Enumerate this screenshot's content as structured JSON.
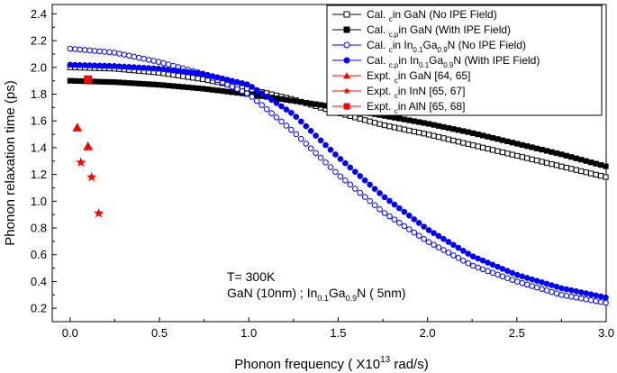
{
  "chart_data": {
    "type": "scatter",
    "title": "",
    "xlabel": "Phonon frequency ( X10",
    "xlabel_sup": "13",
    "xlabel_tail": " rad/s)",
    "ylabel": "Phonon relaxation time (ps)",
    "xlim": [
      -0.1,
      3.0
    ],
    "ylim": [
      0.1,
      2.47
    ],
    "x_ticks": [
      "0.0",
      "0.5",
      "1.0",
      "1.5",
      "2.0",
      "2.5",
      "3.0"
    ],
    "y_ticks": [
      "0.2",
      "0.4",
      "0.6",
      "0.8",
      "1.0",
      "1.2",
      "1.4",
      "1.6",
      "1.8",
      "2.0",
      "2.2",
      "2.4"
    ],
    "annotation_temp": "T= 300K",
    "annotation_structure": {
      "part1": "GaN (10nm) ; In",
      "sub1": "0.1",
      "part2": "Ga",
      "sub2": "0.9",
      "part3": "N ( 5nm)"
    },
    "series": [
      {
        "name": "Cal. τc in GaN (No IPE Field)",
        "color": "#000000",
        "marker": "open-square",
        "x": [
          0.0,
          0.25,
          0.5,
          0.75,
          1.0,
          1.25,
          1.5,
          1.75,
          2.0,
          2.25,
          2.5,
          2.75,
          3.0
        ],
        "y": [
          2.0,
          1.99,
          1.96,
          1.91,
          1.84,
          1.76,
          1.66,
          1.57,
          1.5,
          1.42,
          1.34,
          1.26,
          1.18
        ]
      },
      {
        "name": "Cal. τc,p in GaN (With IPE Field)",
        "color": "#000000",
        "marker": "filled-square",
        "x": [
          0.0,
          0.25,
          0.5,
          0.75,
          1.0,
          1.25,
          1.5,
          1.75,
          2.0,
          2.25,
          2.5,
          2.75,
          3.0
        ],
        "y": [
          1.9,
          1.89,
          1.87,
          1.84,
          1.8,
          1.75,
          1.7,
          1.64,
          1.58,
          1.51,
          1.43,
          1.35,
          1.26
        ]
      },
      {
        "name": "Cal. τc in In0.1Ga0.9N (No IPE Field)",
        "color": "#0000ff",
        "marker": "open-circle",
        "x": [
          0.0,
          0.25,
          0.5,
          0.75,
          1.0,
          1.25,
          1.5,
          1.75,
          2.0,
          2.25,
          2.5,
          2.75,
          3.0
        ],
        "y": [
          2.14,
          2.11,
          2.04,
          1.95,
          1.8,
          1.52,
          1.2,
          0.92,
          0.7,
          0.52,
          0.4,
          0.3,
          0.24
        ]
      },
      {
        "name": "Cal. τc,p in In0.1Ga0.9N (With IPE Field)",
        "color": "#0000ff",
        "marker": "filled-circle",
        "x": [
          0.0,
          0.25,
          0.5,
          0.75,
          1.0,
          1.25,
          1.5,
          1.75,
          2.0,
          2.25,
          2.5,
          2.75,
          3.0
        ],
        "y": [
          2.02,
          2.01,
          1.99,
          1.95,
          1.87,
          1.65,
          1.33,
          1.04,
          0.79,
          0.59,
          0.45,
          0.35,
          0.28
        ]
      },
      {
        "name": "Expt. τc in GaN [64, 65]",
        "color": "#ff0000",
        "marker": "triangle",
        "x": [
          0.04,
          0.1
        ],
        "y": [
          1.55,
          1.41
        ]
      },
      {
        "name": "Expt. τc in InN [65, 67]",
        "color": "#ff0000",
        "marker": "star",
        "x": [
          0.06,
          0.12,
          0.16
        ],
        "y": [
          1.29,
          1.18,
          0.91
        ]
      },
      {
        "name": "Expt. τc in AlN [65, 68]",
        "color": "#ff0000",
        "marker": "filled-square",
        "x": [
          0.1
        ],
        "y": [
          1.91
        ]
      }
    ],
    "legend": {
      "placement": "top-right",
      "entries": [
        {
          "pre": "Cal. ",
          "sub": "c",
          "post": "in GaN (No IPE Field)",
          "color": "#000000",
          "marker": "open-square"
        },
        {
          "pre": "Cal. ",
          "sub": "c,p",
          "post": "in GaN (With IPE Field)",
          "color": "#000000",
          "marker": "filled-square"
        },
        {
          "pre": "Cal. ",
          "sub": "c",
          "post": "in In",
          "sub2": "0.1",
          "mid": "Ga",
          "sub3": "0.9",
          "tail": "N (No IPE Field)",
          "color": "#0000ff",
          "marker": "open-circle"
        },
        {
          "pre": "Cal. ",
          "sub": "c,p",
          "post": "in In",
          "sub2": "0.1",
          "mid": "Ga",
          "sub3": "0.9",
          "tail": "N (With IPE Field)",
          "color": "#0000ff",
          "marker": "filled-circle"
        },
        {
          "pre": "Expt. ",
          "sub": "c",
          "post": "in GaN [64, 65]",
          "color": "#ff0000",
          "marker": "triangle"
        },
        {
          "pre": "Expt. ",
          "sub": "c",
          "post": "in InN [65, 67]",
          "color": "#ff0000",
          "marker": "star"
        },
        {
          "pre": "Expt. ",
          "sub": "c",
          "post": "in AlN [65, 68]",
          "color": "#ff0000",
          "marker": "filled-square"
        }
      ]
    }
  }
}
